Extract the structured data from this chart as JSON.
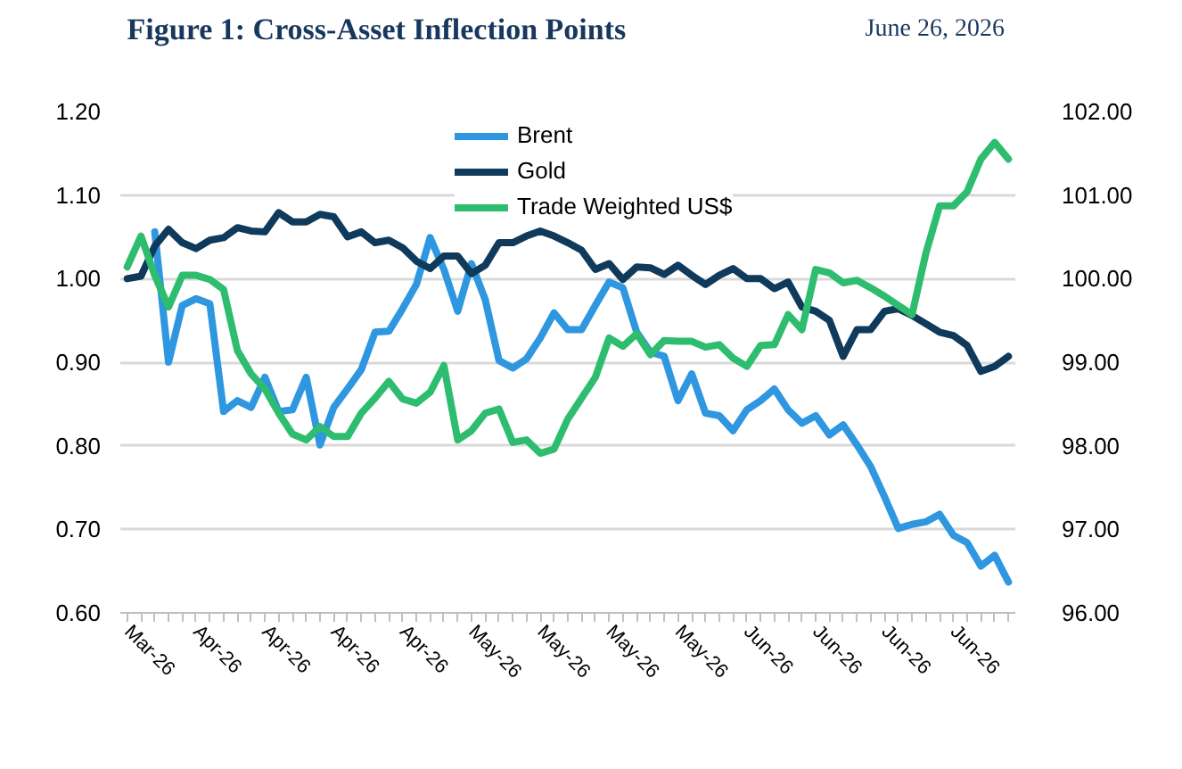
{
  "chart_data": {
    "type": "line",
    "title": "Figure 1: Cross-Asset Inflection Points",
    "subtitle": "June 26, 2026",
    "categories": [
      "Mar-26",
      null,
      null,
      null,
      null,
      "Apr-26",
      null,
      null,
      null,
      null,
      "Apr-26",
      null,
      null,
      null,
      null,
      "Apr-26",
      null,
      null,
      null,
      null,
      "Apr-26",
      null,
      null,
      null,
      null,
      "May-26",
      null,
      null,
      null,
      null,
      "May-26",
      null,
      null,
      null,
      null,
      "May-26",
      null,
      null,
      null,
      null,
      "May-26",
      null,
      null,
      null,
      null,
      "Jun-26",
      null,
      null,
      null,
      null,
      "Jun-26",
      null,
      null,
      null,
      null,
      "Jun-26",
      null,
      null,
      null,
      null,
      "Jun-26",
      null,
      null,
      null,
      null
    ],
    "series": [
      {
        "name": "Brent",
        "color": "#2f96e0",
        "values": [
          null,
          null,
          1.056,
          0.9,
          0.968,
          0.976,
          0.97,
          0.841,
          0.854,
          0.846,
          0.882,
          0.841,
          0.843,
          0.882,
          0.801,
          0.846,
          0.868,
          0.891,
          0.936,
          0.937,
          0.964,
          0.993,
          1.049,
          1.011,
          0.961,
          1.018,
          0.975,
          0.902,
          0.893,
          0.904,
          0.929,
          0.959,
          0.939,
          0.939,
          0.968,
          0.996,
          0.989,
          0.936,
          0.912,
          0.907,
          0.854,
          0.886,
          0.839,
          0.836,
          0.818,
          0.843,
          0.854,
          0.868,
          0.843,
          0.827,
          0.836,
          0.813,
          0.825,
          0.801,
          0.775,
          0.739,
          0.701,
          0.706,
          0.709,
          0.718,
          0.693,
          0.684,
          0.656,
          0.669,
          0.637
        ]
      },
      {
        "name": "Gold",
        "color": "#0f3a5c",
        "values": [
          1.0,
          1.003,
          1.039,
          1.059,
          1.043,
          1.036,
          1.046,
          1.049,
          1.061,
          1.057,
          1.056,
          1.079,
          1.068,
          1.068,
          1.077,
          1.074,
          1.05,
          1.056,
          1.043,
          1.046,
          1.037,
          1.021,
          1.012,
          1.027,
          1.027,
          1.006,
          1.016,
          1.043,
          1.043,
          1.051,
          1.057,
          1.051,
          1.043,
          1.034,
          1.011,
          1.018,
          0.999,
          1.014,
          1.013,
          1.005,
          1.016,
          1.004,
          0.993,
          1.004,
          1.012,
          1.0,
          1.0,
          0.988,
          0.996,
          0.966,
          0.961,
          0.95,
          0.907,
          0.939,
          0.939,
          0.961,
          0.964,
          0.956,
          0.946,
          0.936,
          0.932,
          0.92,
          0.889,
          0.895,
          0.907
        ]
      },
      {
        "name": "Trade Weighted US$",
        "color": "#2ebd6f",
        "axis": "y2",
        "values": [
          100.14,
          100.51,
          100.04,
          99.66,
          100.04,
          100.04,
          99.99,
          99.87,
          99.14,
          98.86,
          98.68,
          98.39,
          98.14,
          98.07,
          98.23,
          98.11,
          98.11,
          98.39,
          98.57,
          98.77,
          98.56,
          98.51,
          98.64,
          98.96,
          98.07,
          98.18,
          98.39,
          98.44,
          98.04,
          98.07,
          97.91,
          97.96,
          98.32,
          98.57,
          98.82,
          99.29,
          99.19,
          99.34,
          99.09,
          99.26,
          99.25,
          99.25,
          99.18,
          99.21,
          99.05,
          98.95,
          99.2,
          99.21,
          99.57,
          99.39,
          100.11,
          100.07,
          99.95,
          99.98,
          99.89,
          99.79,
          99.68,
          99.57,
          100.3,
          100.87,
          100.87,
          101.04,
          101.43,
          101.63,
          101.43
        ]
      }
    ],
    "ylim": [
      0.6,
      1.2
    ],
    "yticks": [
      {
        "value": 0.6,
        "label": "0.60"
      },
      {
        "value": 0.7,
        "label": "0.70"
      },
      {
        "value": 0.8,
        "label": "0.80"
      },
      {
        "value": 0.9,
        "label": "0.90"
      },
      {
        "value": 1.0,
        "label": "1.00"
      },
      {
        "value": 1.1,
        "label": "1.10"
      },
      {
        "value": 1.2,
        "label": "1.20"
      }
    ],
    "y2lim": [
      96,
      102
    ],
    "y2ticks": [
      {
        "value": 96,
        "label": "96.00"
      },
      {
        "value": 97,
        "label": "97.00"
      },
      {
        "value": 98,
        "label": "98.00"
      },
      {
        "value": 99,
        "label": "99.00"
      },
      {
        "value": 100,
        "label": "100.00"
      },
      {
        "value": 101,
        "label": "101.00"
      },
      {
        "value": 102,
        "label": "102.00"
      }
    ],
    "grid": "y",
    "legend": "top",
    "line_style": "solid"
  }
}
